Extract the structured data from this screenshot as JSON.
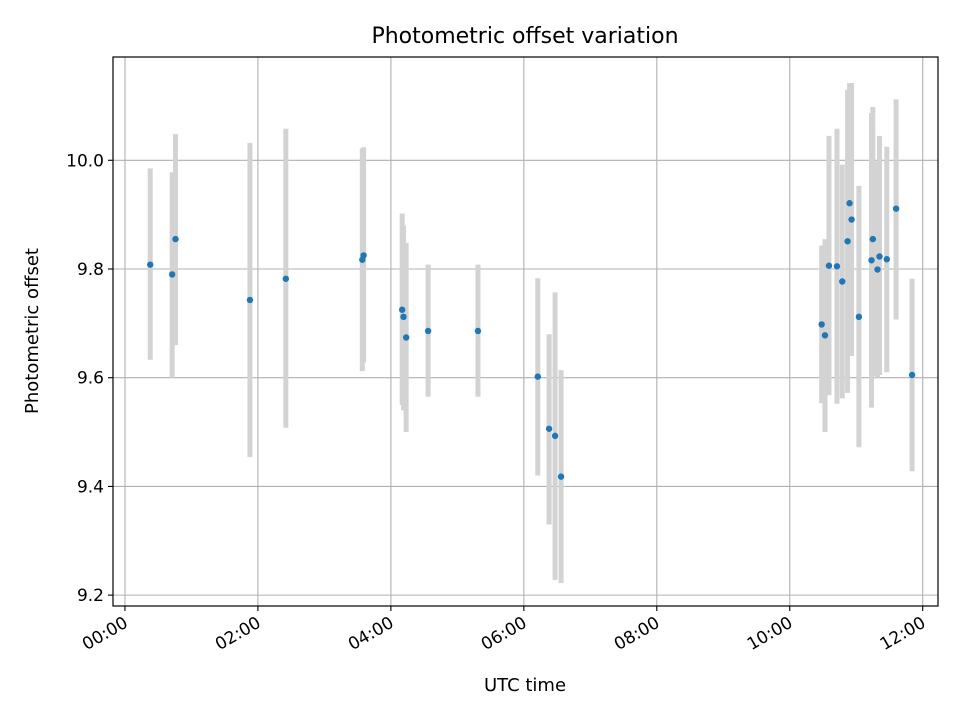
{
  "chart_data": {
    "type": "scatter",
    "title": "Photometric offset variation",
    "xlabel": "UTC time",
    "ylabel": "Photometric offset",
    "x_unit": "hours (UTC)",
    "xlim": [
      -0.18,
      12.23
    ],
    "ylim": [
      9.18,
      10.19
    ],
    "grid": true,
    "legend": "none",
    "colors": {
      "point": "#1f77b4",
      "errorbar": "#d3d3d3",
      "grid": "#b0b0b0",
      "axes": "#000000",
      "background": "#ffffff"
    },
    "x_ticks": [
      {
        "value": 0,
        "label": "00:00"
      },
      {
        "value": 2,
        "label": "02:00"
      },
      {
        "value": 4,
        "label": "04:00"
      },
      {
        "value": 6,
        "label": "06:00"
      },
      {
        "value": 8,
        "label": "08:00"
      },
      {
        "value": 10,
        "label": "10:00"
      },
      {
        "value": 12,
        "label": "12:00"
      }
    ],
    "y_ticks": [
      {
        "value": 9.2,
        "label": "9.2"
      },
      {
        "value": 9.4,
        "label": "9.4"
      },
      {
        "value": 9.6,
        "label": "9.6"
      },
      {
        "value": 9.8,
        "label": "9.8"
      },
      {
        "value": 10.0,
        "label": "10.0"
      }
    ],
    "series": [
      {
        "name": "offset",
        "points": [
          {
            "x": 0.38,
            "y": 9.808,
            "lo": 9.633,
            "hi": 9.985
          },
          {
            "x": 0.71,
            "y": 9.79,
            "lo": 9.6,
            "hi": 9.978
          },
          {
            "x": 0.76,
            "y": 9.855,
            "lo": 9.66,
            "hi": 10.048
          },
          {
            "x": 1.88,
            "y": 9.743,
            "lo": 9.454,
            "hi": 10.032
          },
          {
            "x": 2.42,
            "y": 9.782,
            "lo": 9.508,
            "hi": 10.058
          },
          {
            "x": 3.57,
            "y": 9.817,
            "lo": 9.612,
            "hi": 10.022
          },
          {
            "x": 3.59,
            "y": 9.825,
            "lo": 9.628,
            "hi": 10.024
          },
          {
            "x": 4.17,
            "y": 9.725,
            "lo": 9.55,
            "hi": 9.902
          },
          {
            "x": 4.19,
            "y": 9.712,
            "lo": 9.54,
            "hi": 9.88
          },
          {
            "x": 4.23,
            "y": 9.674,
            "lo": 9.5,
            "hi": 9.848
          },
          {
            "x": 4.56,
            "y": 9.686,
            "lo": 9.565,
            "hi": 9.808
          },
          {
            "x": 5.31,
            "y": 9.686,
            "lo": 9.565,
            "hi": 9.808
          },
          {
            "x": 6.21,
            "y": 9.602,
            "lo": 9.42,
            "hi": 9.783
          },
          {
            "x": 6.38,
            "y": 9.506,
            "lo": 9.33,
            "hi": 9.68
          },
          {
            "x": 6.47,
            "y": 9.493,
            "lo": 9.228,
            "hi": 9.757
          },
          {
            "x": 6.56,
            "y": 9.418,
            "lo": 9.222,
            "hi": 9.614
          },
          {
            "x": 10.48,
            "y": 9.698,
            "lo": 9.553,
            "hi": 9.843
          },
          {
            "x": 10.53,
            "y": 9.678,
            "lo": 9.5,
            "hi": 9.855
          },
          {
            "x": 10.59,
            "y": 9.806,
            "lo": 9.568,
            "hi": 10.045
          },
          {
            "x": 10.71,
            "y": 9.805,
            "lo": 9.552,
            "hi": 10.058
          },
          {
            "x": 10.79,
            "y": 9.777,
            "lo": 9.562,
            "hi": 9.992
          },
          {
            "x": 10.87,
            "y": 9.851,
            "lo": 9.572,
            "hi": 10.13
          },
          {
            "x": 10.9,
            "y": 9.921,
            "lo": 9.7,
            "hi": 10.142
          },
          {
            "x": 10.93,
            "y": 9.891,
            "lo": 9.64,
            "hi": 10.142
          },
          {
            "x": 11.04,
            "y": 9.712,
            "lo": 9.472,
            "hi": 9.953
          },
          {
            "x": 11.25,
            "y": 9.855,
            "lo": 9.603,
            "hi": 10.098
          },
          {
            "x": 11.23,
            "y": 9.816,
            "lo": 9.545,
            "hi": 10.087
          },
          {
            "x": 11.32,
            "y": 9.799,
            "lo": 9.6,
            "hi": 9.998
          },
          {
            "x": 11.35,
            "y": 9.823,
            "lo": 9.605,
            "hi": 10.045
          },
          {
            "x": 11.46,
            "y": 9.818,
            "lo": 9.61,
            "hi": 10.025
          },
          {
            "x": 11.6,
            "y": 9.911,
            "lo": 9.707,
            "hi": 10.112
          },
          {
            "x": 11.84,
            "y": 9.605,
            "lo": 9.428,
            "hi": 9.782
          }
        ]
      }
    ]
  }
}
